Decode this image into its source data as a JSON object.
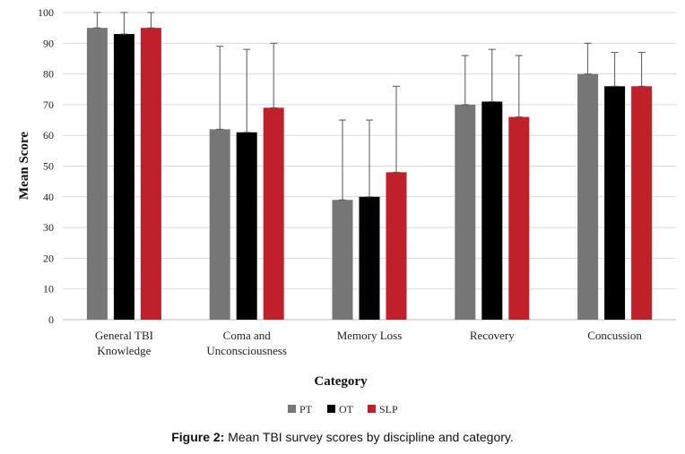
{
  "chart_data": {
    "type": "bar",
    "categories": [
      [
        "General TBI",
        "Knowledge"
      ],
      [
        "Coma and",
        "Unconsciousness"
      ],
      [
        "Memory Loss"
      ],
      [
        "Recovery"
      ],
      [
        "Concussion"
      ]
    ],
    "series": [
      {
        "name": "PT",
        "color": "#767676",
        "values": [
          95,
          62,
          39,
          70,
          80
        ],
        "error_upper": [
          100,
          89,
          65,
          86,
          90
        ]
      },
      {
        "name": "OT",
        "color": "#000000",
        "values": [
          93,
          61,
          40,
          71,
          76
        ],
        "error_upper": [
          100,
          88,
          65,
          88,
          87
        ]
      },
      {
        "name": "SLP",
        "color": "#c0202a",
        "values": [
          95,
          69,
          48,
          66,
          76
        ],
        "error_upper": [
          100,
          90,
          76,
          86,
          87
        ]
      }
    ],
    "xlabel": "Category",
    "ylabel": "Mean Score",
    "ylim": [
      0,
      100
    ],
    "yticks": [
      0,
      10,
      20,
      30,
      40,
      50,
      60,
      70,
      80,
      90,
      100
    ],
    "grid": true,
    "legend_position": "bottom"
  },
  "caption": {
    "label": "Figure 2:",
    "text": " Mean TBI survey scores by discipline and category."
  }
}
